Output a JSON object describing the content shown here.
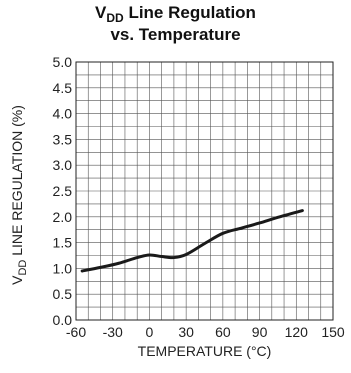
{
  "chart_data": {
    "type": "line",
    "title": {
      "line1_prefix": "V",
      "line1_sub": "DD",
      "line1_suffix": " Line Regulation",
      "line2": "vs. Temperature"
    },
    "xlabel": "TEMPERATURE (°C)",
    "ylabel": {
      "prefix": "V",
      "sub": "DD",
      "suffix": " LINE REGULATION (%)"
    },
    "xlim": [
      -60,
      150
    ],
    "ylim": [
      0.0,
      5.0
    ],
    "x_ticks": [
      "-60",
      "-30",
      "0",
      "30",
      "60",
      "90",
      "120",
      "150"
    ],
    "y_ticks": [
      "0.0",
      "0.5",
      "1.0",
      "1.5",
      "2.0",
      "2.5",
      "3.0",
      "3.5",
      "4.0",
      "4.5",
      "5.0"
    ],
    "grid": true,
    "series": [
      {
        "color": "#1a1a1a",
        "points": [
          {
            "x": -55,
            "y": 0.95
          },
          {
            "x": -40,
            "y": 1.02
          },
          {
            "x": -25,
            "y": 1.1
          },
          {
            "x": -10,
            "y": 1.21
          },
          {
            "x": 0,
            "y": 1.26
          },
          {
            "x": 10,
            "y": 1.23
          },
          {
            "x": 20,
            "y": 1.21
          },
          {
            "x": 30,
            "y": 1.27
          },
          {
            "x": 45,
            "y": 1.48
          },
          {
            "x": 60,
            "y": 1.68
          },
          {
            "x": 75,
            "y": 1.78
          },
          {
            "x": 90,
            "y": 1.88
          },
          {
            "x": 105,
            "y": 1.99
          },
          {
            "x": 125,
            "y": 2.12
          }
        ]
      }
    ]
  }
}
